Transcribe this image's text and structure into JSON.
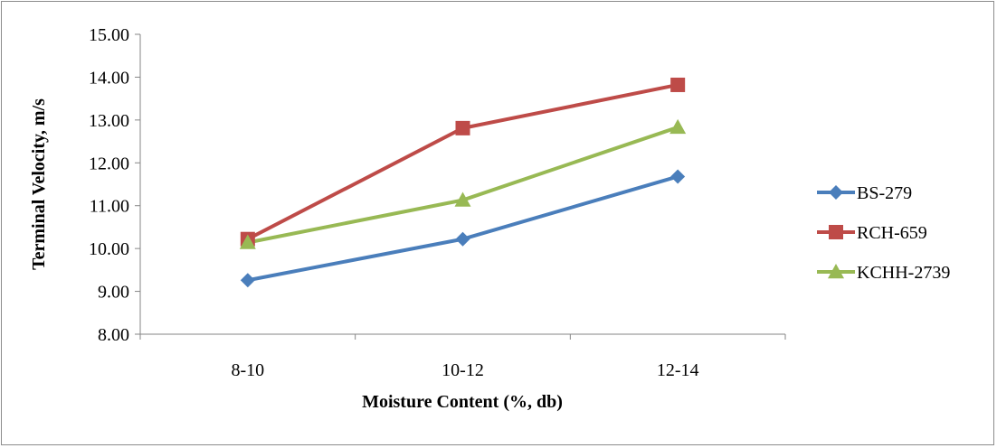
{
  "chart_data": {
    "type": "line",
    "title": "",
    "xlabel": "Moisture Content (%, db)",
    "ylabel": "Terminal Velocity, m/s",
    "categories": [
      "8-10",
      "10-12",
      "12-14"
    ],
    "ylim": [
      8.0,
      15.0
    ],
    "yticks": [
      "8.00",
      "9.00",
      "10.00",
      "11.00",
      "12.00",
      "13.00",
      "14.00",
      "15.00"
    ],
    "grid": false,
    "legend_position": "right",
    "series": [
      {
        "name": "BS-279",
        "values": [
          9.26,
          10.22,
          11.68
        ],
        "color": "#4a7ebb",
        "marker": "diamond"
      },
      {
        "name": "RCH-659",
        "values": [
          10.22,
          12.81,
          13.82
        ],
        "color": "#be4b48",
        "marker": "square"
      },
      {
        "name": "KCHH-2739",
        "values": [
          10.14,
          11.13,
          12.83
        ],
        "color": "#98b954",
        "marker": "triangle"
      }
    ]
  }
}
